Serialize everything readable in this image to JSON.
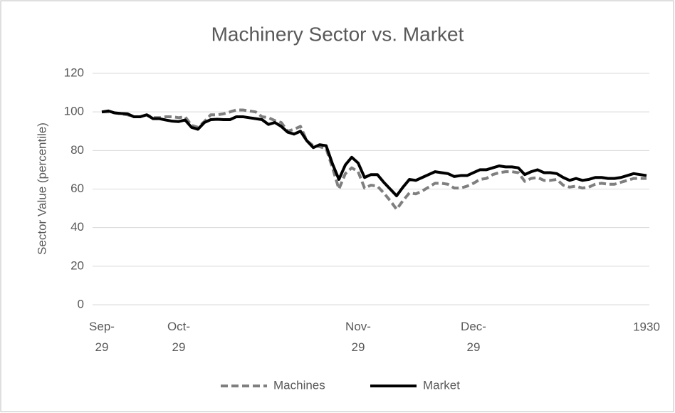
{
  "chart_data": {
    "type": "line",
    "title": "Machinery Sector vs. Market",
    "y_label": "Sector Value (percentile)",
    "categories": [
      "Sep-29",
      null,
      null,
      null,
      null,
      null,
      null,
      null,
      null,
      null,
      null,
      null,
      "Oct-29",
      null,
      null,
      null,
      null,
      null,
      null,
      null,
      null,
      null,
      null,
      null,
      null,
      null,
      null,
      null,
      null,
      null,
      null,
      null,
      null,
      null,
      null,
      null,
      null,
      null,
      null,
      null,
      "Nov-29",
      null,
      null,
      null,
      null,
      null,
      null,
      null,
      null,
      null,
      null,
      null,
      null,
      null,
      null,
      null,
      null,
      null,
      "Dec-29",
      null,
      null,
      null,
      null,
      null,
      null,
      null,
      null,
      null,
      null,
      null,
      null,
      null,
      null,
      null,
      null,
      null,
      null,
      null,
      null,
      null,
      null,
      null,
      null,
      null,
      null,
      "1930"
    ],
    "series": [
      {
        "name": "Machines",
        "color": "#7f7f7f",
        "dashed": true,
        "values": [
          100,
          100,
          99.5,
          99,
          98.5,
          97.5,
          97.5,
          98.5,
          97,
          97,
          97.5,
          97.5,
          97,
          97.5,
          93,
          92,
          95,
          98.5,
          98.5,
          99,
          100,
          101,
          101,
          100.5,
          100,
          97.5,
          97,
          95.5,
          94.5,
          90,
          91,
          92.5,
          85,
          82.5,
          82,
          81,
          71,
          60,
          68,
          71,
          69,
          60.5,
          62,
          61.5,
          58,
          54,
          49.5,
          54,
          58,
          57.5,
          59,
          61,
          63,
          63,
          62.5,
          60.5,
          60.5,
          61.5,
          63,
          65,
          65.5,
          67.5,
          68.5,
          69,
          69,
          68.5,
          64,
          65.5,
          66,
          64.5,
          64.5,
          65,
          62,
          61,
          61.5,
          60.5,
          61,
          62.5,
          63,
          62.5,
          62.5,
          63.5,
          64.5,
          65.5,
          65.5,
          65.5
        ]
      },
      {
        "name": "Market",
        "color": "#000000",
        "dashed": false,
        "values": [
          100,
          100.5,
          99.5,
          99.2,
          99,
          97.5,
          97.5,
          98.5,
          96.5,
          96.5,
          95.8,
          95.2,
          95,
          95.8,
          92,
          91,
          94.5,
          96,
          96.2,
          96,
          96,
          97.5,
          97.5,
          97,
          96.5,
          96,
          93.5,
          94.5,
          92.5,
          89.5,
          88.5,
          90,
          85,
          81.5,
          83,
          82.5,
          73,
          65,
          72.5,
          76.5,
          73.5,
          66,
          67.5,
          67.5,
          63.5,
          60,
          56.5,
          61,
          65,
          64.5,
          66,
          67.5,
          69,
          68.5,
          68,
          66.5,
          67,
          67,
          68.5,
          70,
          70,
          71,
          72,
          71.5,
          71.5,
          71,
          67.5,
          69,
          70,
          68.5,
          68.5,
          68,
          66,
          64.5,
          65.5,
          64.5,
          65,
          66,
          66,
          65.5,
          65.5,
          66,
          67,
          68,
          67.5,
          67
        ]
      }
    ],
    "ylim": [
      0,
      120
    ],
    "yticks": [
      0,
      20,
      40,
      60,
      80,
      100,
      120
    ],
    "grid": true,
    "legend": "bottom"
  }
}
